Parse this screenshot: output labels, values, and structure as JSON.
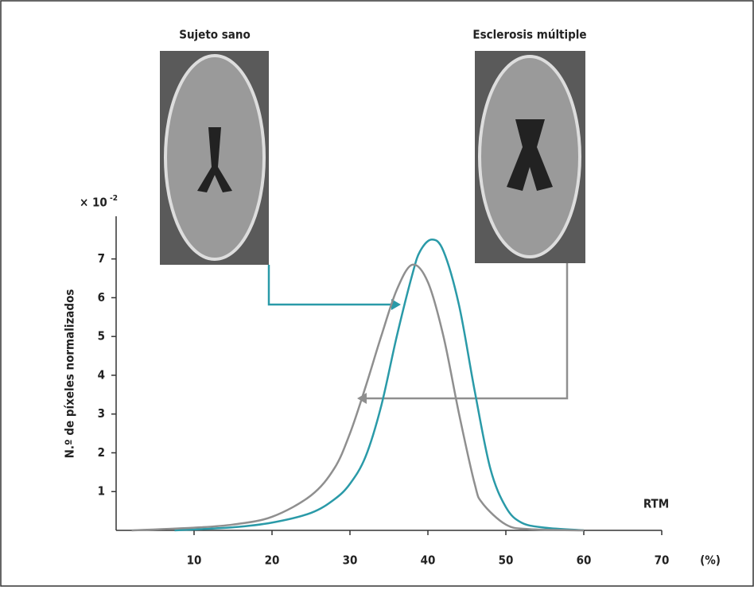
{
  "chart_data": {
    "type": "line",
    "image_titles": [
      "Sujeto sano",
      "Esclerosis múltiple"
    ],
    "y_multiplier": "× 10",
    "y_multiplier_exponent": "-2",
    "ylabel": "N.º de píxeles normalizados",
    "xlabel": "RTM",
    "x_unit": "(%)",
    "xlim": [
      0,
      70
    ],
    "ylim": [
      0,
      8.1
    ],
    "xticks": [
      10,
      20,
      30,
      40,
      50,
      60,
      70
    ],
    "yticks": [
      1,
      2,
      3,
      4,
      5,
      6,
      7
    ],
    "series": [
      {
        "name": "Sujeto sano",
        "color": "#2a9aa8",
        "x": [
          7.5,
          15,
          20,
          25,
          28,
          30,
          32,
          34,
          36,
          38,
          39,
          40.5,
          42,
          44,
          46,
          48,
          50,
          52,
          55,
          60
        ],
        "values": [
          0,
          0.08,
          0.2,
          0.45,
          0.8,
          1.2,
          1.9,
          3.2,
          5.0,
          6.6,
          7.2,
          7.5,
          7.2,
          5.8,
          3.6,
          1.6,
          0.6,
          0.2,
          0.07,
          0
        ]
      },
      {
        "name": "Esclerosis múltiple",
        "color": "#8f8f8f",
        "x": [
          2,
          10,
          15,
          20,
          25,
          28,
          30,
          32,
          34,
          36,
          38,
          40,
          42,
          44,
          46,
          47,
          50,
          53,
          60
        ],
        "values": [
          0,
          0.07,
          0.15,
          0.35,
          0.9,
          1.6,
          2.5,
          3.7,
          5.0,
          6.2,
          6.85,
          6.4,
          5.0,
          3.0,
          1.2,
          0.7,
          0.15,
          0.03,
          0
        ]
      }
    ]
  }
}
